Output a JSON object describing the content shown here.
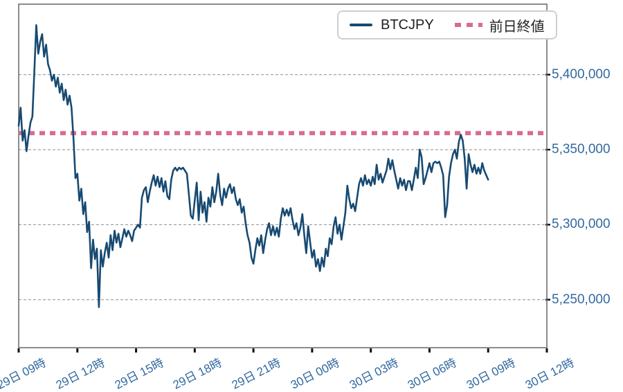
{
  "legend": {
    "series1": "BTCJPY",
    "series2": "前日終値"
  },
  "colors": {
    "price_line": "#174a72",
    "prev_close_line": "#d96c8c",
    "axis_label": "#31699f",
    "grid_line": "#8c8c8c",
    "plot_border": "#6f6f6f",
    "tick_mark": "#111111",
    "legend_text": "#1f1f1f",
    "legend_border": "#cfcfcf",
    "background": "#ffffff"
  },
  "chart_data": {
    "type": "line",
    "title": "",
    "xlabel": "",
    "ylabel": "",
    "grid": "dashed-horizontal",
    "legend_position": "top-right",
    "x_axis": {
      "xlim_hours": [
        0,
        27
      ],
      "tick_hours": [
        0,
        3,
        6,
        9,
        12,
        15,
        18,
        21,
        24,
        27
      ],
      "tick_labels": [
        "29日 09時",
        "29日 12時",
        "29日 15時",
        "29日 18時",
        "29日 21時",
        "30日 00時",
        "30日 03時",
        "30日 06時",
        "30日 09時",
        "30日 12時"
      ]
    },
    "y_axis": {
      "ylim": [
        5218000,
        5447000
      ],
      "ticks": [
        5250000,
        5300000,
        5350000,
        5400000
      ],
      "tick_labels": [
        "5,250,000",
        "5,300,000",
        "5,350,000",
        "5,400,000"
      ]
    },
    "series": [
      {
        "name": "BTCJPY",
        "type": "line",
        "t_start_hours": 0,
        "t_step_hours": 0.1,
        "values": [
          5366000,
          5378000,
          5356000,
          5363000,
          5349000,
          5359000,
          5368000,
          5372000,
          5402000,
          5433000,
          5414000,
          5422000,
          5427000,
          5412000,
          5420000,
          5407000,
          5403000,
          5396000,
          5400000,
          5392000,
          5398000,
          5388000,
          5394000,
          5383000,
          5390000,
          5380000,
          5386000,
          5378000,
          5358000,
          5331000,
          5334000,
          5316000,
          5324000,
          5307000,
          5315000,
          5295000,
          5302000,
          5271000,
          5290000,
          5277000,
          5284000,
          5245000,
          5283000,
          5272000,
          5281000,
          5288000,
          5278000,
          5293000,
          5283000,
          5296000,
          5288000,
          5294000,
          5285000,
          5291000,
          5297000,
          5292000,
          5296000,
          5293000,
          5289000,
          5296000,
          5298000,
          5300000,
          5298000,
          5318000,
          5323000,
          5325000,
          5315000,
          5322000,
          5328000,
          5333000,
          5326000,
          5332000,
          5325000,
          5331000,
          5322000,
          5329000,
          5319000,
          5317000,
          5330000,
          5336000,
          5338000,
          5336000,
          5338000,
          5337000,
          5338000,
          5336000,
          5334000,
          5320000,
          5306000,
          5304000,
          5316000,
          5328000,
          5303000,
          5322000,
          5308000,
          5315000,
          5302000,
          5318000,
          5312000,
          5325000,
          5315000,
          5322000,
          5334000,
          5320000,
          5313000,
          5324000,
          5318000,
          5324000,
          5327000,
          5321000,
          5325000,
          5317000,
          5313000,
          5317000,
          5308000,
          5312000,
          5301000,
          5293000,
          5288000,
          5278000,
          5274000,
          5283000,
          5291000,
          5286000,
          5293000,
          5281000,
          5290000,
          5297000,
          5301000,
          5293000,
          5299000,
          5293000,
          5298000,
          5292000,
          5304000,
          5311000,
          5306000,
          5310000,
          5306000,
          5311000,
          5303000,
          5297000,
          5301000,
          5293000,
          5298000,
          5307000,
          5293000,
          5281000,
          5299000,
          5288000,
          5278000,
          5283000,
          5272000,
          5277000,
          5269000,
          5278000,
          5272000,
          5284000,
          5279000,
          5291000,
          5287000,
          5299000,
          5305000,
          5294000,
          5300000,
          5290000,
          5299000,
          5308000,
          5326000,
          5317000,
          5311000,
          5314000,
          5309000,
          5318000,
          5327000,
          5331000,
          5326000,
          5333000,
          5327000,
          5330000,
          5326000,
          5332000,
          5327000,
          5340000,
          5330000,
          5334000,
          5328000,
          5332000,
          5336000,
          5344000,
          5337000,
          5343000,
          5336000,
          5330000,
          5324000,
          5331000,
          5326000,
          5330000,
          5323000,
          5329000,
          5329000,
          5323000,
          5330000,
          5338000,
          5331000,
          5350000,
          5345000,
          5327000,
          5331000,
          5336000,
          5341000,
          5335000,
          5341000,
          5342000,
          5341000,
          5342000,
          5338000,
          5333000,
          5305000,
          5313000,
          5332000,
          5341000,
          5347000,
          5350000,
          5344000,
          5355000,
          5360000,
          5356000,
          5344000,
          5324000,
          5347000,
          5340000,
          5335000,
          5340000,
          5334000,
          5338000,
          5334000,
          5341000,
          5336000,
          5333000,
          5330000
        ]
      },
      {
        "name": "前日終値",
        "type": "hline",
        "value": 5361000
      }
    ]
  }
}
